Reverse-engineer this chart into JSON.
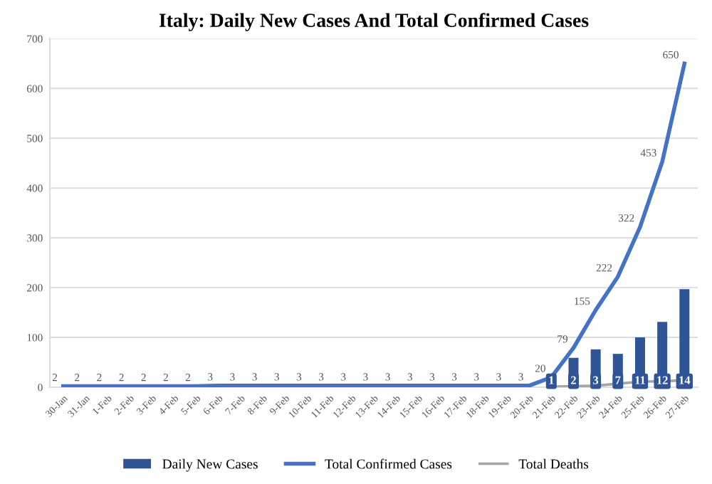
{
  "chart_data": {
    "type": "bar",
    "title": "Italy: Daily New Cases And Total Confirmed Cases",
    "categories": [
      "30-Jan",
      "31-Jan",
      "1-Feb",
      "2-Feb",
      "3-Feb",
      "4-Feb",
      "5-Feb",
      "6-Feb",
      "7-Feb",
      "8-Feb",
      "9-Feb",
      "10-Feb",
      "11-Feb",
      "12-Feb",
      "13-Feb",
      "14-Feb",
      "15-Feb",
      "16-Feb",
      "17-Feb",
      "18-Feb",
      "19-Feb",
      "20-Feb",
      "21-Feb",
      "22-Feb",
      "23-Feb",
      "24-Feb",
      "25-Feb",
      "26-Feb",
      "27-Feb"
    ],
    "series": [
      {
        "name": "Daily New Cases",
        "color": "#2f5597",
        "values": [
          0,
          0,
          0,
          0,
          0,
          0,
          0,
          1,
          0,
          0,
          0,
          0,
          0,
          0,
          0,
          0,
          0,
          0,
          0,
          0,
          0,
          0,
          null,
          59,
          76,
          67,
          100,
          131,
          197
        ]
      },
      {
        "name": "Total Confirmed Cases",
        "type": "line",
        "color": "#4472c4",
        "values": [
          2,
          2,
          2,
          2,
          2,
          2,
          2,
          3,
          3,
          3,
          3,
          3,
          3,
          3,
          3,
          3,
          3,
          3,
          3,
          3,
          3,
          3,
          20,
          79,
          155,
          222,
          322,
          453,
          650
        ],
        "value_labels": [
          "2",
          "2",
          "2",
          "2",
          "2",
          "2",
          "2",
          "3",
          "3",
          "3",
          "3",
          "3",
          "3",
          "3",
          "3",
          "3",
          "3",
          "3",
          "3",
          "3",
          "3",
          "3",
          "20",
          "79",
          "155",
          "222",
          "322",
          "453",
          "650"
        ]
      },
      {
        "name": "Total Deaths",
        "type": "line",
        "color": "#a5a5a5",
        "values": [
          null,
          null,
          null,
          null,
          null,
          null,
          null,
          null,
          null,
          null,
          null,
          null,
          null,
          null,
          null,
          null,
          null,
          null,
          null,
          null,
          null,
          null,
          1,
          2,
          3,
          7,
          11,
          12,
          14
        ],
        "value_labels": [
          null,
          null,
          null,
          null,
          null,
          null,
          null,
          null,
          null,
          null,
          null,
          null,
          null,
          null,
          null,
          null,
          null,
          null,
          null,
          null,
          null,
          null,
          "1",
          "2",
          "3",
          "7",
          "11",
          "12",
          "14"
        ]
      }
    ],
    "ylim": [
      0,
      700
    ],
    "yticks": [
      0,
      100,
      200,
      300,
      400,
      500,
      600,
      700
    ],
    "grid": "y",
    "legend": "bottom"
  }
}
